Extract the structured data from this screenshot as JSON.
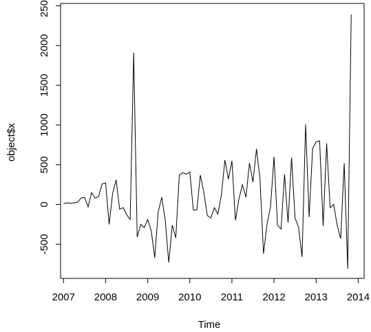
{
  "chart_data": {
    "type": "line",
    "title": "",
    "xlabel": "Time",
    "ylabel": "object$x",
    "xlim": [
      2006.93,
      2014.14
    ],
    "ylim": [
      -930,
      2530
    ],
    "x_ticks": [
      2007,
      2008,
      2009,
      2010,
      2011,
      2012,
      2013,
      2014
    ],
    "y_ticks": [
      -500,
      0,
      500,
      1000,
      1500,
      2000,
      2500
    ],
    "x_tick_labels": [
      "2007",
      "2008",
      "2009",
      "2010",
      "2011",
      "2012",
      "2013",
      "2014"
    ],
    "y_tick_labels": [
      "-500",
      "0",
      "500",
      "1000",
      "1500",
      "2000",
      "2500"
    ],
    "grid": false,
    "series": [
      {
        "start": 2007.0,
        "frequency": 12,
        "color": "#000000",
        "values": [
          10,
          20,
          15,
          20,
          30,
          80,
          90,
          -30,
          150,
          80,
          100,
          260,
          270,
          -250,
          140,
          310,
          -60,
          -40,
          -130,
          -190,
          1910,
          -410,
          -250,
          -290,
          -190,
          -330,
          -670,
          -90,
          90,
          -200,
          -730,
          -260,
          -420,
          370,
          400,
          380,
          410,
          -70,
          -70,
          370,
          150,
          -140,
          -170,
          -40,
          -120,
          120,
          560,
          320,
          550,
          -200,
          70,
          250,
          90,
          520,
          280,
          700,
          320,
          -620,
          -250,
          -30,
          600,
          -260,
          -310,
          380,
          -230,
          590,
          -170,
          -290,
          -660,
          1010,
          -160,
          700,
          790,
          800,
          -270,
          770,
          -40,
          0,
          -260,
          -430,
          520,
          -810,
          2390
        ]
      }
    ]
  }
}
